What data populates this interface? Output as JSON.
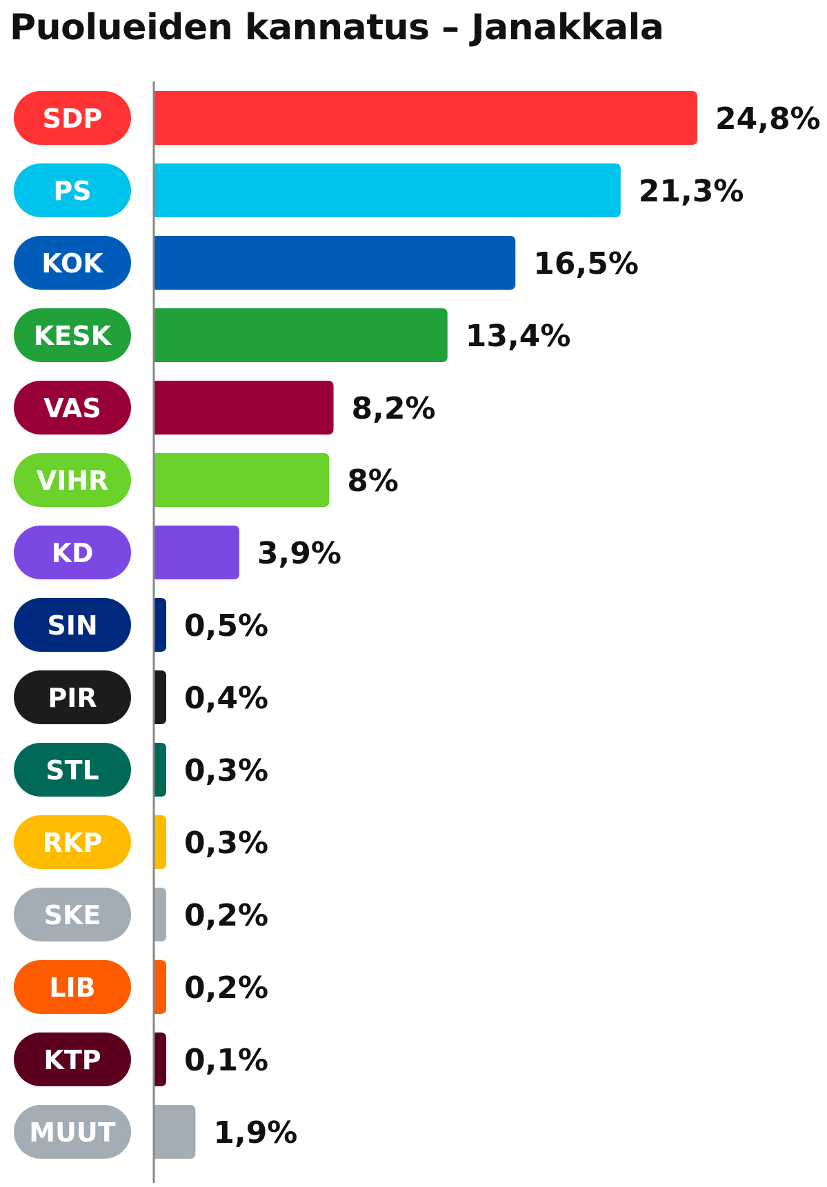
{
  "title": "Puolueiden kannatus – Janakkala",
  "chart_data": {
    "type": "bar",
    "orientation": "horizontal",
    "title": "Puolueiden kannatus – Janakkala",
    "categories": [
      "SDP",
      "PS",
      "KOK",
      "KESK",
      "VAS",
      "VIHR",
      "KD",
      "SIN",
      "PIR",
      "STL",
      "RKP",
      "SKE",
      "LIB",
      "KTP",
      "MUUT"
    ],
    "values": [
      24.8,
      21.3,
      16.5,
      13.4,
      8.2,
      8,
      3.9,
      0.5,
      0.4,
      0.3,
      0.3,
      0.2,
      0.2,
      0.1,
      1.9
    ],
    "value_labels": [
      "24,8%",
      "21,3%",
      "16,5%",
      "13,4%",
      "8,2%",
      "8%",
      "3,9%",
      "0,5%",
      "0,4%",
      "0,3%",
      "0,3%",
      "0,2%",
      "0,2%",
      "0,1%",
      "1,9%"
    ],
    "colors": [
      "#ff3333",
      "#00c3ec",
      "#005cb9",
      "#21a13a",
      "#990038",
      "#6ad22a",
      "#7b48e3",
      "#002a7d",
      "#1c1c1c",
      "#006957",
      "#ffbb00",
      "#a2adb5",
      "#ff5c00",
      "#5c0020",
      "#a2adb5"
    ],
    "label_text_color": "#ffffff",
    "axis_color": "#888888",
    "xlabel": "",
    "ylabel": "",
    "grid": false,
    "legend": "none"
  }
}
